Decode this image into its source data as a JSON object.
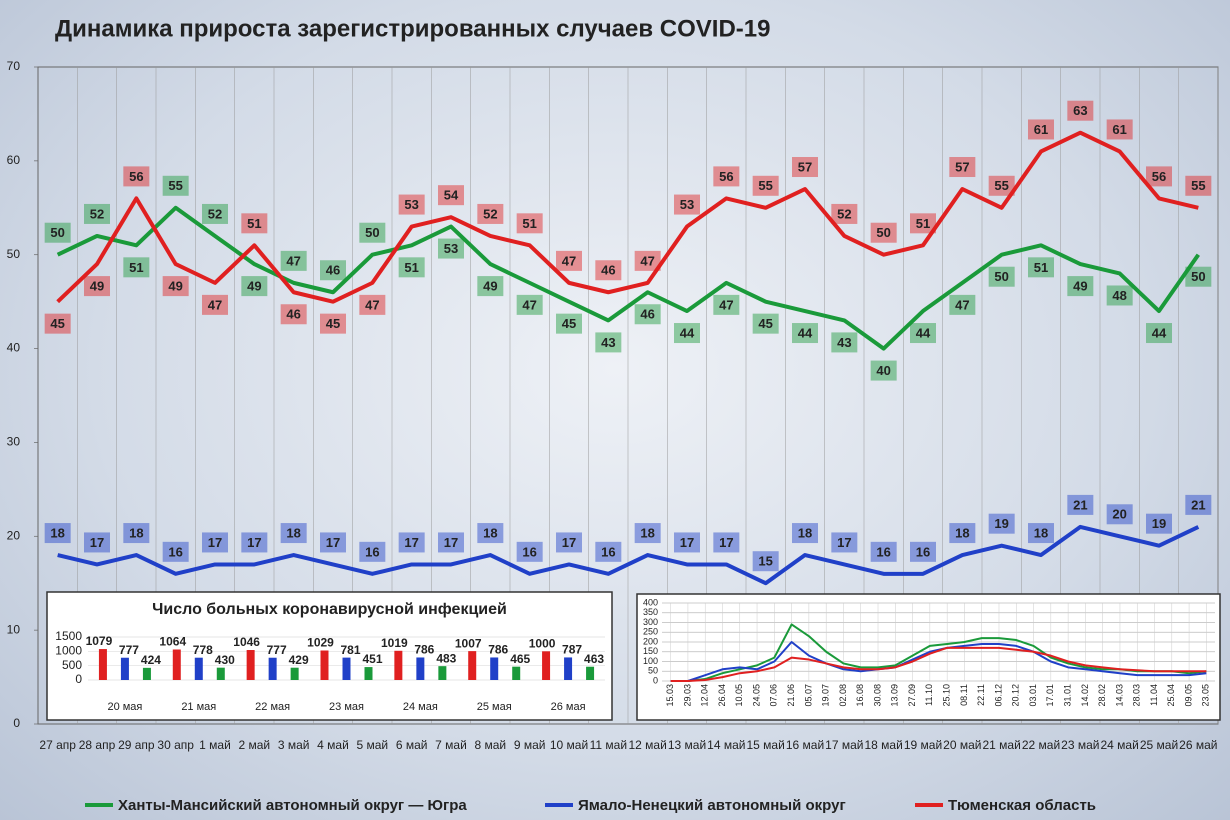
{
  "chart_data": [
    {
      "type": "line",
      "title": "Динамика прироста зарегистрированных случаев COVID-19",
      "categories": [
        "27 апр",
        "28 апр",
        "29 апр",
        "30 апр",
        "1 май",
        "2 май",
        "3 май",
        "4 май",
        "5 май",
        "6 май",
        "7 май",
        "8 май",
        "9 май",
        "10 май",
        "11 май",
        "12 май",
        "13 май",
        "14 май",
        "15 май",
        "16 май",
        "17 май",
        "18 май",
        "19 май",
        "20 май",
        "21 май",
        "22 май",
        "23 май",
        "24 май",
        "25 май",
        "26 май"
      ],
      "series": [
        {
          "name": "Ханты-Мансийский автономный округ — Югра",
          "color": "#1a9a3a",
          "values": [
            50,
            52,
            51,
            55,
            52,
            49,
            47,
            46,
            50,
            51,
            53,
            49,
            47,
            45,
            43,
            46,
            44,
            47,
            45,
            44,
            43,
            40,
            44,
            47,
            50,
            51,
            49,
            48,
            44,
            50
          ]
        },
        {
          "name": "Ямало-Ненецкий автономный округ",
          "color": "#2040c8",
          "values": [
            18,
            17,
            18,
            16,
            17,
            17,
            18,
            17,
            16,
            17,
            17,
            18,
            16,
            17,
            16,
            18,
            17,
            17,
            15,
            18,
            17,
            16,
            16,
            18,
            19,
            18,
            21,
            20,
            19,
            21
          ]
        },
        {
          "name": "Тюменская область",
          "color": "#e02020",
          "values": [
            45,
            49,
            56,
            49,
            47,
            51,
            46,
            45,
            47,
            53,
            54,
            52,
            51,
            47,
            46,
            47,
            53,
            56,
            55,
            57,
            52,
            50,
            51,
            57,
            55,
            61,
            63,
            61,
            56,
            55
          ]
        }
      ],
      "ylim": [
        0,
        70
      ],
      "yticks": [
        0,
        10,
        20,
        30,
        40,
        50,
        60,
        70
      ],
      "grid": false
    },
    {
      "type": "bar",
      "title": "Число больных коронавирусной инфекцией",
      "categories": [
        "20 мая",
        "21 мая",
        "22 мая",
        "23 мая",
        "24 мая",
        "25 мая",
        "26 мая"
      ],
      "series": [
        {
          "color": "#e02020",
          "values": [
            1079,
            1064,
            1046,
            1029,
            1019,
            1007,
            1000
          ]
        },
        {
          "color": "#2040c8",
          "values": [
            777,
            778,
            777,
            781,
            786,
            786,
            787
          ]
        },
        {
          "color": "#1a9a3a",
          "values": [
            424,
            430,
            429,
            451,
            483,
            465,
            463
          ]
        }
      ],
      "ylim": [
        0,
        1500
      ],
      "yticks": [
        0,
        500,
        1000,
        1500
      ],
      "grid": true
    },
    {
      "type": "line",
      "categories": [
        "15.03",
        "29.03",
        "12.04",
        "26.04",
        "10.05",
        "24.05",
        "07.06",
        "21.06",
        "05.07",
        "19.07",
        "02.08",
        "16.08",
        "30.08",
        "13.09",
        "27.09",
        "11.10",
        "25.10",
        "08.11",
        "22.11",
        "06.12",
        "20.12",
        "03.01",
        "17.01",
        "31.01",
        "14.02",
        "28.02",
        "14.03",
        "28.03",
        "11.04",
        "25.04",
        "09.05",
        "23.05"
      ],
      "series": [
        {
          "color": "#1a9a3a",
          "values": [
            0,
            0,
            10,
            40,
            60,
            80,
            120,
            290,
            230,
            150,
            90,
            70,
            70,
            80,
            130,
            180,
            190,
            200,
            220,
            220,
            210,
            180,
            120,
            90,
            70,
            60,
            60,
            50,
            50,
            50,
            40,
            50
          ]
        },
        {
          "color": "#2040c8",
          "values": [
            0,
            0,
            30,
            60,
            70,
            60,
            100,
            200,
            130,
            90,
            60,
            50,
            60,
            70,
            110,
            150,
            170,
            180,
            190,
            190,
            180,
            150,
            100,
            70,
            60,
            50,
            40,
            30,
            30,
            30,
            30,
            40
          ]
        },
        {
          "color": "#e02020",
          "values": [
            0,
            0,
            5,
            20,
            40,
            50,
            70,
            120,
            110,
            90,
            70,
            60,
            60,
            70,
            100,
            140,
            170,
            170,
            170,
            170,
            160,
            150,
            130,
            100,
            80,
            70,
            60,
            55,
            50,
            50,
            50,
            50
          ]
        }
      ],
      "ylim": [
        0,
        400
      ],
      "yticks": [
        0,
        50,
        100,
        150,
        200,
        250,
        300,
        350,
        400
      ],
      "grid": true
    }
  ]
}
